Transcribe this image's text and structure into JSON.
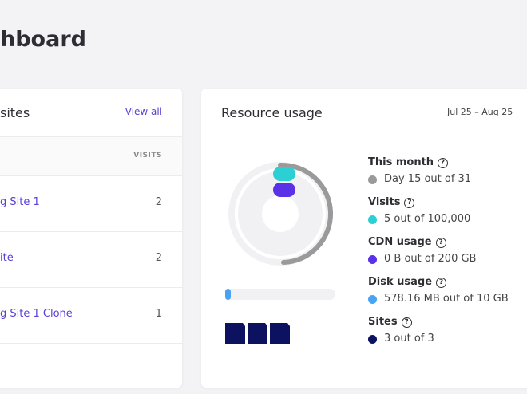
{
  "header": {
    "title": "hboard"
  },
  "sites_card": {
    "title": "sites",
    "link": "View all",
    "column": "VISITS",
    "rows": [
      [
        "g Site 1",
        "2"
      ],
      [
        "ite",
        "2"
      ],
      [
        "g Site 1 Clone",
        "1"
      ]
    ]
  },
  "resource_card": {
    "title": "Resource usage",
    "range": "Jul 25 – Aug 25",
    "items": [
      {
        "label": "This month",
        "value": "Day 15 out of 31",
        "color": "#9a9a9a"
      },
      {
        "label": "Visits",
        "value": "5 out of 100,000",
        "color": "#2ccfd3"
      },
      {
        "label": "CDN usage",
        "value": "0 B out of 200 GB",
        "color": "#5a31e6"
      },
      {
        "label": "Disk usage",
        "value": "578.16 MB out of 10 GB",
        "color": "#4aa3f2"
      },
      {
        "label": "Sites",
        "value": "3 out of 3",
        "color": "#0d1260"
      }
    ]
  }
}
